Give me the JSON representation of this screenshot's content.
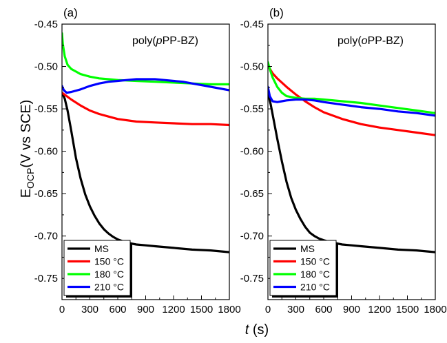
{
  "figure": {
    "ylabel_main": "E",
    "ylabel_sub": "OCP",
    "ylabel_rest": "(V vs SCE)",
    "xlabel_var": "t",
    "xlabel_unit": " (s)"
  },
  "chart_data": [
    {
      "type": "line",
      "panel_label": "(a)",
      "title_pre": "poly(",
      "title_italic": "p",
      "title_post": "PP-BZ)",
      "xlim": [
        0,
        1800
      ],
      "ylim": [
        -0.775,
        -0.45
      ],
      "xticks": [
        0,
        300,
        600,
        900,
        1200,
        1500,
        1800
      ],
      "xtick_labels": [
        "0",
        "300",
        "600",
        "900",
        "1200",
        "1500",
        "1800"
      ],
      "yticks": [
        -0.45,
        -0.5,
        -0.55,
        -0.6,
        -0.65,
        -0.7,
        -0.75
      ],
      "ytick_labels": [
        "-0.45",
        "-0.50",
        "-0.55",
        "-0.60",
        "-0.65",
        "-0.70",
        "-0.75"
      ],
      "legend_position": "bottom-left",
      "series": [
        {
          "name": "MS",
          "color": "#000000",
          "x": [
            0,
            30,
            60,
            100,
            150,
            200,
            250,
            300,
            350,
            400,
            450,
            500,
            550,
            600,
            700,
            800,
            900,
            1000,
            1200,
            1400,
            1600,
            1800
          ],
          "y": [
            -0.531,
            -0.538,
            -0.552,
            -0.576,
            -0.608,
            -0.632,
            -0.651,
            -0.665,
            -0.676,
            -0.685,
            -0.692,
            -0.697,
            -0.701,
            -0.704,
            -0.708,
            -0.71,
            -0.711,
            -0.712,
            -0.714,
            -0.716,
            -0.717,
            -0.719
          ]
        },
        {
          "name": "150 °C",
          "color": "#ff0000",
          "x": [
            0,
            50,
            100,
            200,
            300,
            400,
            500,
            600,
            800,
            1000,
            1200,
            1400,
            1600,
            1800
          ],
          "y": [
            -0.531,
            -0.535,
            -0.539,
            -0.546,
            -0.552,
            -0.556,
            -0.559,
            -0.562,
            -0.565,
            -0.566,
            -0.567,
            -0.568,
            -0.568,
            -0.569
          ]
        },
        {
          "name": "180 °C",
          "color": "#00ff00",
          "x": [
            0,
            10,
            30,
            60,
            100,
            150,
            200,
            300,
            400,
            500,
            600,
            800,
            1000,
            1200,
            1400,
            1600,
            1800
          ],
          "y": [
            -0.461,
            -0.474,
            -0.488,
            -0.498,
            -0.503,
            -0.506,
            -0.509,
            -0.512,
            -0.514,
            -0.515,
            -0.516,
            -0.517,
            -0.518,
            -0.519,
            -0.52,
            -0.521,
            -0.521
          ]
        },
        {
          "name": "210 °C",
          "color": "#0000ff",
          "x": [
            0,
            20,
            50,
            100,
            200,
            300,
            400,
            500,
            600,
            700,
            800,
            900,
            1000,
            1100,
            1200,
            1300,
            1400,
            1500,
            1600,
            1700,
            1800
          ],
          "y": [
            -0.523,
            -0.528,
            -0.531,
            -0.53,
            -0.527,
            -0.523,
            -0.52,
            -0.518,
            -0.517,
            -0.516,
            -0.515,
            -0.515,
            -0.515,
            -0.516,
            -0.517,
            -0.518,
            -0.52,
            -0.522,
            -0.524,
            -0.526,
            -0.528
          ]
        }
      ]
    },
    {
      "type": "line",
      "panel_label": "(b)",
      "title_pre": "poly(",
      "title_italic": "o",
      "title_post": "PP-BZ)",
      "xlim": [
        0,
        1800
      ],
      "ylim": [
        -0.775,
        -0.45
      ],
      "xticks": [
        0,
        300,
        600,
        900,
        1200,
        1500,
        1800
      ],
      "xtick_labels": [
        "0",
        "300",
        "600",
        "900",
        "1200",
        "1500",
        "1800"
      ],
      "yticks": [
        -0.45,
        -0.5,
        -0.55,
        -0.6,
        -0.65,
        -0.7,
        -0.75
      ],
      "ytick_labels": [
        "-0.45",
        "-0.50",
        "-0.55",
        "-0.60",
        "-0.65",
        "-0.70",
        "-0.75"
      ],
      "legend_position": "bottom-left",
      "series": [
        {
          "name": "MS",
          "color": "#000000",
          "x": [
            0,
            30,
            60,
            100,
            150,
            200,
            250,
            300,
            350,
            400,
            450,
            500,
            550,
            600,
            700,
            800,
            900,
            1000,
            1200,
            1400,
            1600,
            1800
          ],
          "y": [
            -0.531,
            -0.545,
            -0.562,
            -0.585,
            -0.612,
            -0.636,
            -0.655,
            -0.669,
            -0.68,
            -0.689,
            -0.696,
            -0.7,
            -0.703,
            -0.705,
            -0.708,
            -0.71,
            -0.711,
            -0.712,
            -0.714,
            -0.716,
            -0.717,
            -0.719
          ]
        },
        {
          "name": "150 °C",
          "color": "#ff0000",
          "x": [
            0,
            50,
            100,
            200,
            300,
            400,
            500,
            600,
            800,
            1000,
            1200,
            1400,
            1600,
            1800
          ],
          "y": [
            -0.499,
            -0.508,
            -0.514,
            -0.524,
            -0.533,
            -0.541,
            -0.548,
            -0.554,
            -0.562,
            -0.568,
            -0.572,
            -0.575,
            -0.578,
            -0.581
          ]
        },
        {
          "name": "180 °C",
          "color": "#00ff00",
          "x": [
            0,
            20,
            50,
            100,
            150,
            200,
            300,
            400,
            500,
            600,
            800,
            1000,
            1200,
            1400,
            1600,
            1800
          ],
          "y": [
            -0.495,
            -0.503,
            -0.513,
            -0.524,
            -0.531,
            -0.535,
            -0.537,
            -0.538,
            -0.538,
            -0.539,
            -0.541,
            -0.543,
            -0.546,
            -0.549,
            -0.552,
            -0.555
          ]
        },
        {
          "name": "210 °C",
          "color": "#0000ff",
          "x": [
            0,
            20,
            50,
            100,
            150,
            200,
            300,
            400,
            500,
            600,
            800,
            1000,
            1200,
            1400,
            1600,
            1800
          ],
          "y": [
            -0.524,
            -0.535,
            -0.541,
            -0.542,
            -0.541,
            -0.54,
            -0.539,
            -0.539,
            -0.54,
            -0.542,
            -0.545,
            -0.548,
            -0.55,
            -0.553,
            -0.555,
            -0.558
          ]
        }
      ]
    }
  ]
}
